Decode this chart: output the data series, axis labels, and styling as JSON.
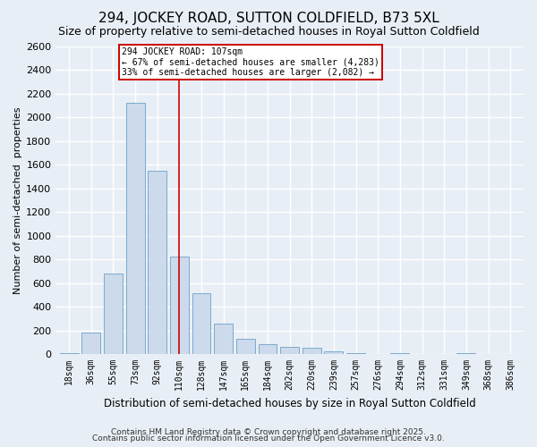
{
  "title": "294, JOCKEY ROAD, SUTTON COLDFIELD, B73 5XL",
  "subtitle": "Size of property relative to semi-detached houses in Royal Sutton Coldfield",
  "xlabel": "Distribution of semi-detached houses by size in Royal Sutton Coldfield",
  "ylabel": "Number of semi-detached  properties",
  "categories": [
    "18sqm",
    "36sqm",
    "55sqm",
    "73sqm",
    "92sqm",
    "110sqm",
    "128sqm",
    "147sqm",
    "165sqm",
    "184sqm",
    "202sqm",
    "220sqm",
    "239sqm",
    "257sqm",
    "276sqm",
    "294sqm",
    "312sqm",
    "331sqm",
    "349sqm",
    "368sqm",
    "386sqm"
  ],
  "values": [
    10,
    180,
    680,
    2120,
    1550,
    820,
    510,
    255,
    130,
    80,
    60,
    50,
    25,
    10,
    2,
    10,
    2,
    2,
    10,
    2,
    2
  ],
  "bar_color": "#ccdaeb",
  "bar_edge_color": "#7aaace",
  "red_line_index": 5,
  "annotation_text_line1": "294 JOCKEY ROAD: 107sqm",
  "annotation_text_line2": "← 67% of semi-detached houses are smaller (4,283)",
  "annotation_text_line3": "33% of semi-detached houses are larger (2,082) →",
  "ylim": [
    0,
    2600
  ],
  "yticks": [
    0,
    200,
    400,
    600,
    800,
    1000,
    1200,
    1400,
    1600,
    1800,
    2000,
    2200,
    2400,
    2600
  ],
  "title_fontsize": 11,
  "subtitle_fontsize": 9,
  "footer_line1": "Contains HM Land Registry data © Crown copyright and database right 2025.",
  "footer_line2": "Contains public sector information licensed under the Open Government Licence v3.0.",
  "bg_color": "#e8eef5",
  "plot_bg_color": "#e8eef5",
  "grid_color": "#ffffff",
  "annotation_box_color": "#ffffff",
  "annotation_box_edge": "#cc0000"
}
